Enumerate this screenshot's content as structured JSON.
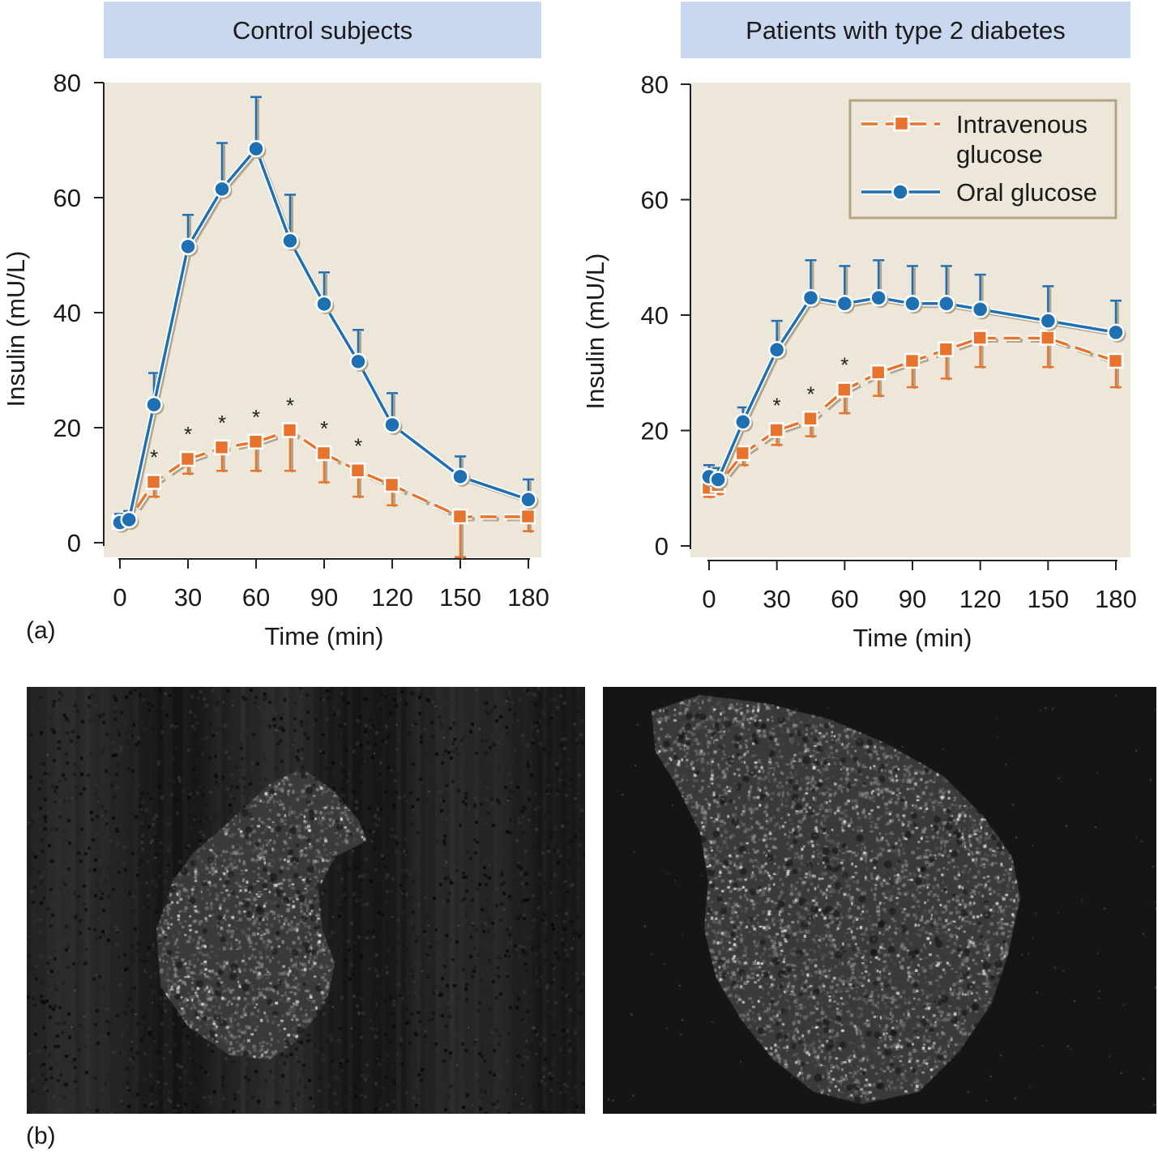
{
  "panel_labels": {
    "a": "(a)",
    "b": "(b)"
  },
  "legend": {
    "iv_label_line1": "Intravenous",
    "iv_label_line2": "glucose",
    "oral_label": "Oral glucose"
  },
  "colors": {
    "oral": "#1f6fb3",
    "iv": "#e8732c",
    "plot_bg": "#ede7d9",
    "header_bg": "#c9d7ef",
    "shadow": "#b3a68c",
    "legend_border": "#b3a37f"
  },
  "chart_data": [
    {
      "type": "line",
      "title": "Control subjects",
      "xlabel": "Time (min)",
      "ylabel": "Insulin (mU/L)",
      "xlim": [
        0,
        180
      ],
      "ylim": [
        0,
        80
      ],
      "xticks": [
        0,
        30,
        60,
        90,
        120,
        150,
        180
      ],
      "yticks": [
        0,
        20,
        40,
        60,
        80
      ],
      "legend_position": "none",
      "series": [
        {
          "key": "oral",
          "x": [
            0,
            4,
            15,
            30,
            45,
            60,
            75,
            90,
            105,
            120,
            150,
            180
          ],
          "y": [
            3.5,
            4,
            24,
            51.5,
            61.5,
            68.5,
            52.5,
            41.5,
            31.5,
            20.5,
            11.5,
            7.5
          ],
          "err": [
            1.5,
            1.5,
            5.5,
            5.5,
            8,
            9,
            8,
            5.5,
            5.5,
            5.5,
            3.5,
            3.5
          ],
          "err_dir": "up"
        },
        {
          "key": "iv",
          "x": [
            0,
            4,
            15,
            30,
            45,
            60,
            75,
            90,
            105,
            120,
            150,
            180
          ],
          "y": [
            3.5,
            4,
            10.5,
            14.5,
            16.5,
            17.5,
            19.5,
            15.5,
            12.5,
            10,
            4.5,
            4.5
          ],
          "err": [
            1,
            1,
            2.5,
            2.5,
            4,
            5,
            7,
            5,
            4.5,
            3.5,
            7,
            2.5
          ],
          "err_dir": "down",
          "significant": [
            false,
            false,
            true,
            true,
            true,
            true,
            true,
            true,
            true,
            false,
            false,
            false
          ]
        }
      ]
    },
    {
      "type": "line",
      "title": "Patients with type 2 diabetes",
      "xlabel": "Time (min)",
      "ylabel": "Insulin (mU/L)",
      "xlim": [
        0,
        180
      ],
      "ylim": [
        0,
        80
      ],
      "xticks": [
        0,
        30,
        60,
        90,
        120,
        150,
        180
      ],
      "yticks": [
        0,
        20,
        40,
        60,
        80
      ],
      "legend_position": "top-right",
      "series": [
        {
          "key": "oral",
          "x": [
            0,
            4,
            15,
            30,
            45,
            60,
            75,
            90,
            105,
            120,
            150,
            180
          ],
          "y": [
            12,
            11.5,
            21.5,
            34,
            43,
            42,
            43,
            42,
            42,
            41,
            39,
            37
          ],
          "err": [
            2,
            2,
            2.5,
            5,
            6.5,
            6.5,
            6.5,
            6.5,
            6.5,
            6,
            6,
            5.5
          ],
          "err_dir": "up"
        },
        {
          "key": "iv",
          "x": [
            0,
            4,
            15,
            30,
            45,
            60,
            75,
            90,
            105,
            120,
            150,
            180
          ],
          "y": [
            10,
            10.5,
            16,
            20,
            22,
            27,
            30,
            32,
            34,
            36,
            36,
            32
          ],
          "err": [
            1.5,
            1.5,
            2,
            2.5,
            3,
            4,
            4,
            4.5,
            5,
            5,
            5,
            4.5
          ],
          "err_dir": "down",
          "significant": [
            false,
            false,
            false,
            true,
            true,
            true,
            false,
            false,
            false,
            false,
            false,
            false
          ]
        }
      ]
    }
  ]
}
